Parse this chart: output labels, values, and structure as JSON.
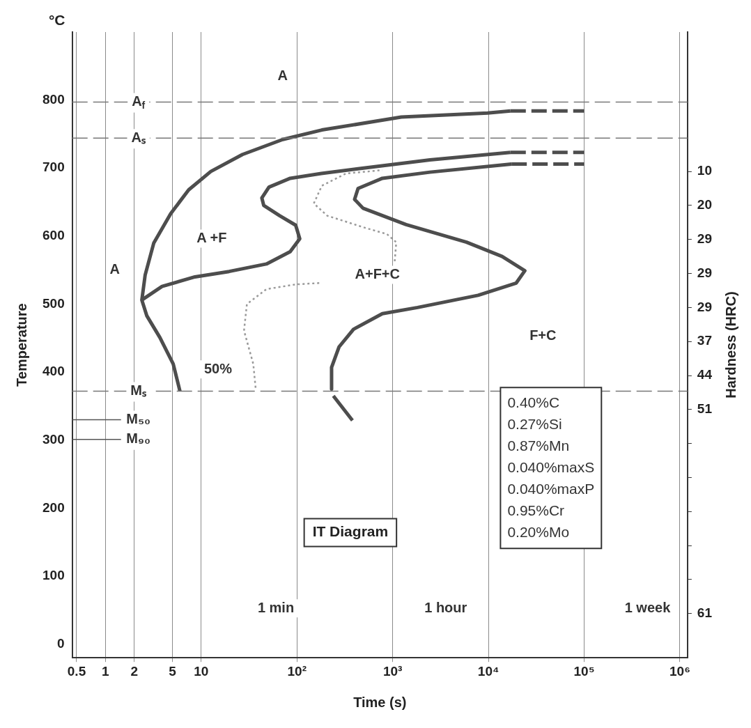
{
  "chart_data": {
    "type": "line",
    "xlabel": "Time (s)",
    "ylabel": "Temperature",
    "y2label": "Hardness (HRC)",
    "log": "x",
    "grid": "x",
    "legend": false,
    "marker": "none",
    "xlim": [
      0.45,
      1200000
    ],
    "ylim": [
      -20,
      900
    ],
    "xticks": [
      0.5,
      1,
      2,
      5,
      10,
      {
        "value": 100,
        "label": "10²"
      },
      {
        "value": 1000,
        "label": "10³"
      },
      {
        "value": 10000,
        "label": "10⁴"
      },
      {
        "value": 100000,
        "label": "10⁵"
      },
      {
        "value": 1000000,
        "label": "10⁶"
      }
    ],
    "yticks": [
      0,
      100,
      200,
      300,
      400,
      500,
      600,
      700,
      800
    ],
    "y2_categories": [
      "10",
      "20",
      "29",
      "29",
      "29",
      "37",
      "44",
      "51",
      null,
      null,
      null,
      null,
      null,
      "61"
    ],
    "series": [
      {
        "color": "#4d4d4d",
        "line_style": "solid",
        "x": [
          6,
          5.1,
          3.7,
          2.7,
          2.4,
          2.6,
          3.2,
          4.8,
          7.4,
          12.6,
          27,
          71,
          182,
          1230,
          9800,
          17000
        ],
        "values": [
          372,
          412,
          451,
          483,
          506,
          543,
          590,
          633,
          668,
          695,
          720,
          742,
          756,
          775,
          781,
          784
        ]
      },
      {
        "color": "#4d4d4d",
        "line_style": "dashed",
        "x": [
          17000,
          100000
        ],
        "values": [
          784,
          784
        ]
      },
      {
        "color": "#4d4d4d",
        "line_style": "solid",
        "x": [
          2.4,
          3.9,
          8.6,
          19.6,
          48,
          85,
          107,
          97,
          66,
          45,
          43,
          51,
          85,
          180,
          435,
          2450,
          17000
        ],
        "values": [
          506,
          526,
          540,
          548,
          559,
          577,
          596,
          616,
          630,
          645,
          656,
          672,
          685,
          692,
          699,
          712,
          723
        ]
      },
      {
        "color": "#4d4d4d",
        "line_style": "dashed",
        "x": [
          17000,
          100000
        ],
        "values": [
          723,
          723
        ]
      },
      {
        "color": "#4d4d4d",
        "line_style": "solid",
        "x": [
          17400,
          2450,
          780,
          435,
          400,
          490,
          1380,
          5900,
          13900,
          24000,
          19500,
          7800,
          1820,
          780,
          390,
          275,
          230,
          230,
          235,
          240,
          380
        ],
        "values": [
          706,
          694,
          685,
          670,
          654,
          641,
          617,
          591,
          570,
          549,
          531,
          513,
          495,
          486,
          463,
          437,
          407,
          375,
          null,
          365,
          329
        ]
      },
      {
        "color": "#4d4d4d",
        "line_style": "dashed",
        "x": [
          17400,
          100000
        ],
        "values": [
          706,
          706
        ]
      },
      {
        "color": "#9a9a9a",
        "line_style": "dotted",
        "x": [
          37,
          35,
          28,
          30,
          48,
          97,
          174,
          400,
          1050,
          1090,
          870,
          520,
          207,
          150,
          182,
          325,
          780
        ],
        "values": [
          377,
          412,
          461,
          500,
          522,
          529,
          531,
          null,
          563,
          591,
          603,
          612,
          630,
          648,
          674,
          692,
          697
        ]
      }
    ],
    "ref_lines": [
      {
        "axis": "y",
        "value": 797,
        "label": "A$_{f}$",
        "color": "#777777",
        "line_style": "dashed"
      },
      {
        "axis": "y",
        "value": 744,
        "label": "Aₛ",
        "color": "#777777",
        "line_style": "dashed"
      },
      {
        "axis": "y",
        "value": 372,
        "label": "Mₛ",
        "color": "#777777",
        "line_style": "dashed"
      },
      {
        "axis": "y",
        "value": 330,
        "label": "M₅₀",
        "color": "#555555",
        "line_style": "solid"
      },
      {
        "axis": "y",
        "value": 301,
        "label": "M₉₀",
        "color": "#555555",
        "line_style": "solid"
      }
    ],
    "annotations": [
      "°C",
      "IT Diagram",
      "0.40%C",
      "0.27%Si",
      "0.87%Mn",
      "0.040%maxS",
      "0.040%maxP",
      "0.95%Cr",
      "0.20%Mo",
      "A",
      "A",
      "A +F",
      "A+F+C",
      "F+C",
      "50%",
      "1 min",
      "1 hour",
      "1 week"
    ]
  }
}
